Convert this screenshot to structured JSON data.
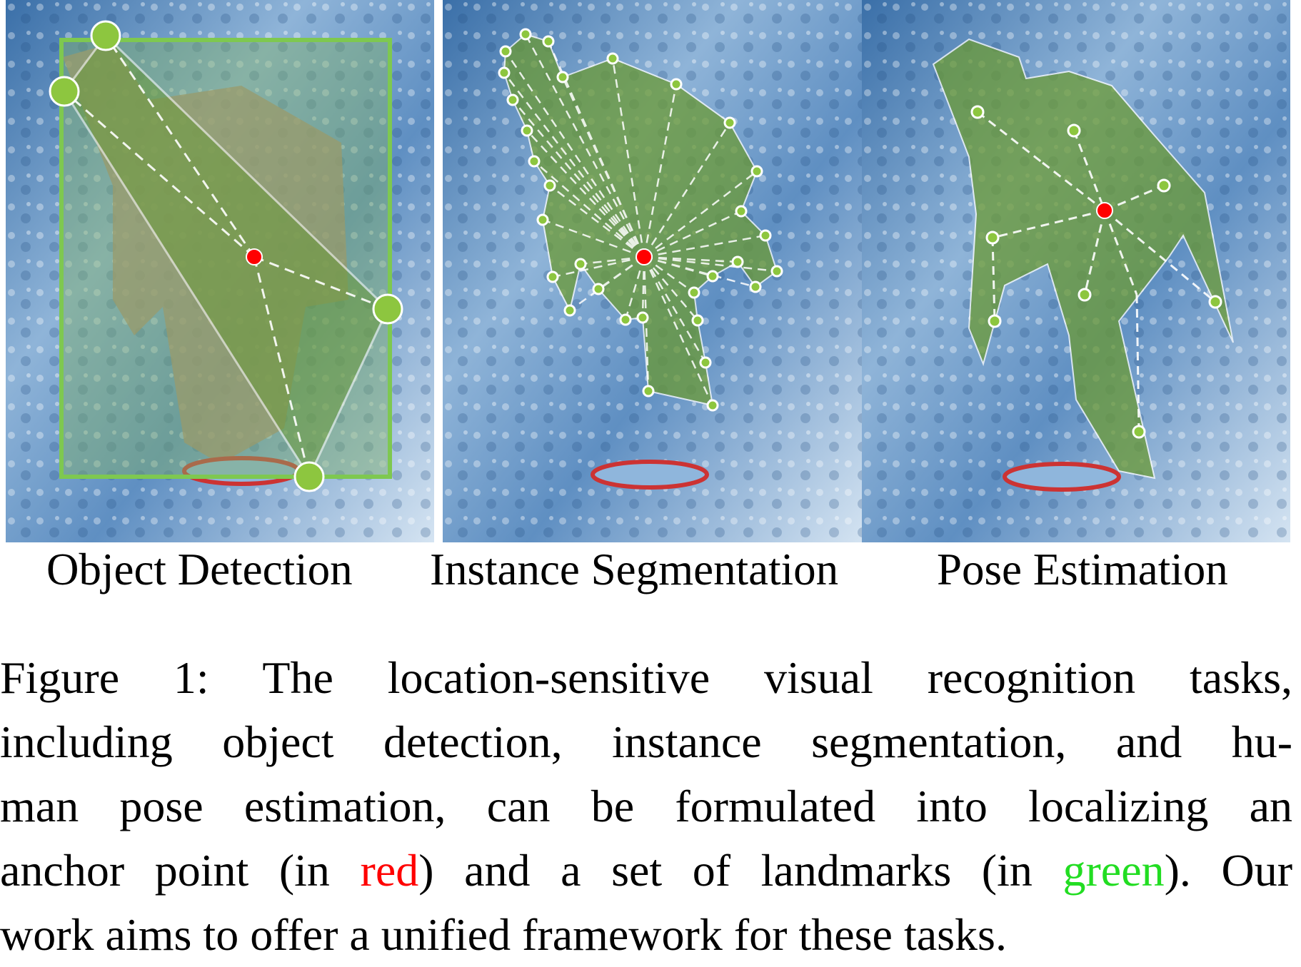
{
  "panels": [
    {
      "id": "object-detection",
      "label": "Object Detection"
    },
    {
      "id": "instance-segmentation",
      "label": "Instance Segmentation"
    },
    {
      "id": "pose-estimation",
      "label": "Pose Estimation"
    }
  ],
  "caption": {
    "line1": "Figure 1:  The location-sensitive visual recognition tasks,",
    "line2": "including object detection, instance segmentation, and hu-",
    "line3": "man pose estimation, can be formulated into localizing an",
    "line4_a": "anchor point (in ",
    "line4_red": "red",
    "line4_b": ") and a set of landmarks (in ",
    "line4_green": "green",
    "line4_c": "). Our",
    "line5": "work aims to offer a unified framework for these tasks."
  },
  "colors": {
    "anchor": "#ff0000",
    "landmark": "#8dc63f",
    "box": "#7ec850",
    "water_dark": "#2f5f98",
    "water_light": "#c8dcf0"
  }
}
